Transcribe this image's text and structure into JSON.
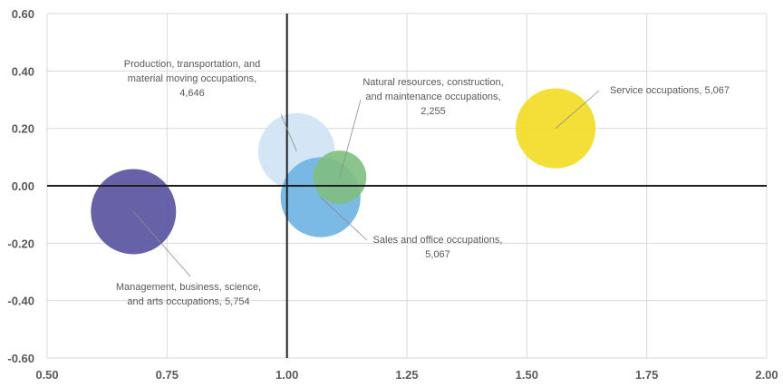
{
  "chart_data": {
    "type": "scatter",
    "subtype": "bubble",
    "title": "",
    "xlabel": "",
    "ylabel": "",
    "xlim": [
      0.5,
      2.0
    ],
    "ylim": [
      -0.6,
      0.6
    ],
    "x_ticks": [
      "0.50",
      "0.75",
      "1.00",
      "1.25",
      "1.50",
      "1.75",
      "2.00"
    ],
    "y_ticks": [
      "0.60",
      "0.40",
      "0.20",
      "0.00",
      "-0.20",
      "-0.40",
      "-0.60"
    ],
    "grid": true,
    "reference_lines": {
      "x": 1.0,
      "y": 0.0
    },
    "points": [
      {
        "name": "Management, business, science, and arts occupations",
        "x": 0.68,
        "y": -0.09,
        "size": 5754,
        "color": "#56519f",
        "label_lines": [
          "Management, business, science,",
          "and arts occupations, 5,754"
        ]
      },
      {
        "name": "Production, transportation, and material moving occupations",
        "x": 1.02,
        "y": 0.12,
        "size": 4646,
        "color": "#cfe3f4",
        "label_lines": [
          "Production, transportation, and",
          "material moving occupations,",
          "4,646"
        ]
      },
      {
        "name": "Sales and office occupations",
        "x": 1.07,
        "y": -0.04,
        "size": 5067,
        "color": "#6db2e2",
        "label_lines": [
          "Sales and office occupations,",
          "5,067"
        ]
      },
      {
        "name": "Natural resources, construction, and maintenance occupations",
        "x": 1.11,
        "y": 0.03,
        "size": 2255,
        "color": "#7fbf7f",
        "label_lines": [
          "Natural resources, construction,",
          "and maintenance occupations,",
          "2,255"
        ]
      },
      {
        "name": "Service occupations",
        "x": 1.56,
        "y": 0.2,
        "size": 5067,
        "color": "#f3dc22",
        "label_lines": [
          "Service occupations, 5,067"
        ]
      }
    ]
  }
}
